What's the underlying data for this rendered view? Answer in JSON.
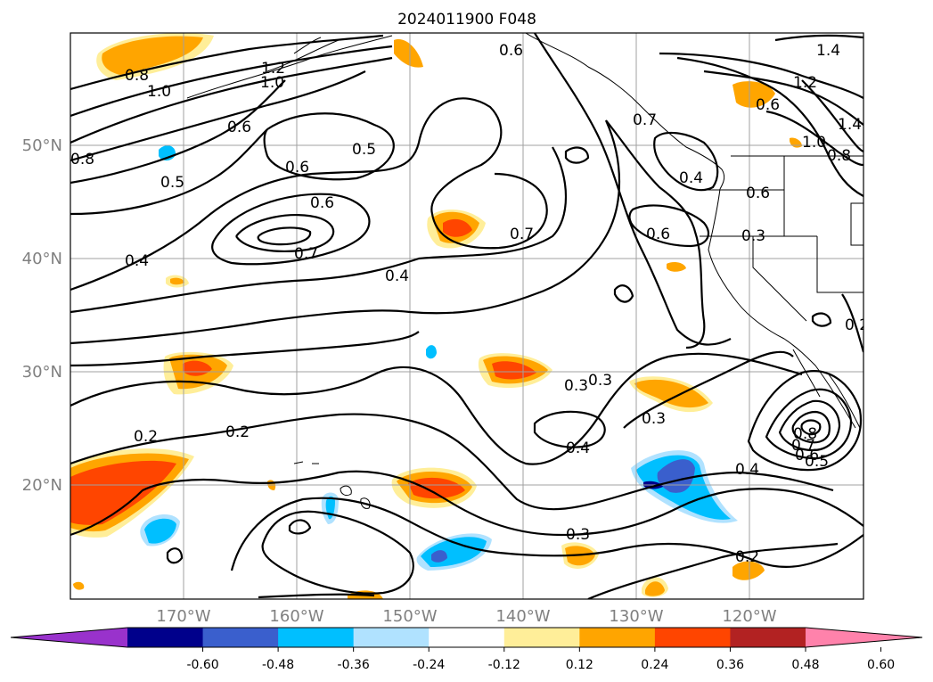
{
  "title": "2024011900 F048",
  "lat_labels": [
    "50°N",
    "40°N",
    "30°N",
    "20°N"
  ],
  "lon_labels": [
    "170°W",
    "160°W",
    "150°W",
    "140°W",
    "130°W",
    "120°W"
  ],
  "colorbar": {
    "ticks": [
      "-0.60",
      "-0.48",
      "-0.36",
      "-0.24",
      "-0.12",
      "0.12",
      "0.24",
      "0.36",
      "0.48",
      "0.60"
    ],
    "colors": [
      "#9932cc",
      "#00008b",
      "#3a5fcd",
      "#00bfff",
      "#b0e2ff",
      "#ffffff",
      "#ffee99",
      "#ffa500",
      "#ff4500",
      "#b22222",
      "#ff82ab"
    ]
  },
  "contour_labels": [
    "0.8",
    "1.0",
    "1.2",
    "1.0",
    "0.6",
    "0.8",
    "0.5",
    "0.6",
    "0.5",
    "0.6",
    "0.6",
    "0.7",
    "0.4",
    "0.7",
    "0.4",
    "0.6",
    "0.7",
    "0.4",
    "0.6",
    "0.6",
    "0.3",
    "1.2",
    "1.4",
    "1.4",
    "1.0",
    "0.8",
    "0.3",
    "0.2",
    "0.2",
    "0.2",
    "0.3",
    "0.4",
    "0.3",
    "0.4",
    "0.8",
    "0.7",
    "0.6",
    "0.5",
    "0.3",
    "0.2"
  ],
  "colors": {
    "contour": "#000000",
    "grid": "#a0a0a0",
    "coast": "#000000"
  }
}
